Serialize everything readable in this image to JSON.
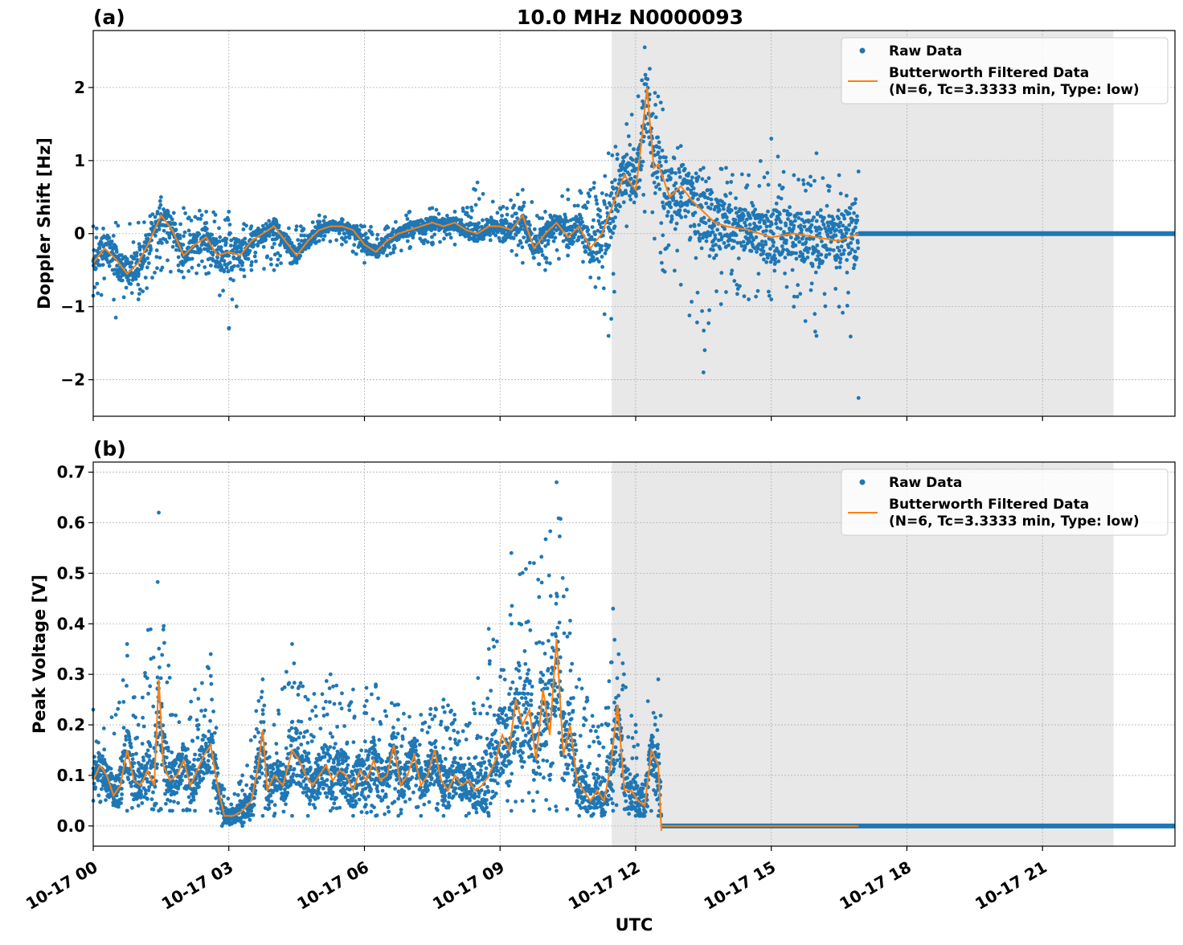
{
  "title": "10.0 MHz N0000093",
  "xlabel": "UTC",
  "x_ticks": [
    "10-17 00",
    "10-17 03",
    "10-17 06",
    "10-17 09",
    "10-17 12",
    "10-17 15",
    "10-17 18",
    "10-17 21"
  ],
  "colors": {
    "raw": "#1f77b4",
    "filtered": "#ff7f0e",
    "shade": "#e8e8e8",
    "grid": "#b0b0b0"
  },
  "legend": {
    "raw_label": "Raw Data",
    "filtered_label_1": "Butterworth Filtered Data",
    "filtered_label_2": "(N=6, Tc=3.3333 min, Type: low)"
  },
  "chart_data": [
    {
      "type": "scatter",
      "panel_label": "(a)",
      "ylabel": "Doppler Shift [Hz]",
      "xlim_hours": [
        0,
        23.93
      ],
      "ylim": [
        -2.5,
        2.78
      ],
      "y_ticks": [
        -2,
        -1,
        0,
        1,
        2
      ],
      "y_tick_labels": [
        "−2",
        "−1",
        "0",
        "1",
        "2"
      ],
      "shaded_region_hours": [
        11.47,
        22.57
      ],
      "data_end_hours": 16.93,
      "flat_value_after_end": 0,
      "series": [
        {
          "name": "Raw Data",
          "kind": "scatter",
          "approx_envelope": [
            {
              "x": 0.0,
              "lo": -0.85,
              "hi": 0.1
            },
            {
              "x": 0.5,
              "lo": -1.15,
              "hi": 0.15
            },
            {
              "x": 1.0,
              "lo": -0.9,
              "hi": 0.15
            },
            {
              "x": 1.5,
              "lo": -0.5,
              "hi": 0.5
            },
            {
              "x": 2.0,
              "lo": -0.6,
              "hi": 0.35
            },
            {
              "x": 2.5,
              "lo": -0.55,
              "hi": 0.3
            },
            {
              "x": 3.0,
              "lo": -1.3,
              "hi": 0.3
            },
            {
              "x": 3.5,
              "lo": -0.5,
              "hi": 0.1
            },
            {
              "x": 4.0,
              "lo": -0.5,
              "hi": 0.2
            },
            {
              "x": 4.5,
              "lo": -0.4,
              "hi": 0.1
            },
            {
              "x": 5.0,
              "lo": -0.1,
              "hi": 0.25
            },
            {
              "x": 5.5,
              "lo": -0.15,
              "hi": 0.2
            },
            {
              "x": 6.0,
              "lo": -0.4,
              "hi": 0.1
            },
            {
              "x": 6.5,
              "lo": -0.3,
              "hi": 0.1
            },
            {
              "x": 7.0,
              "lo": -0.2,
              "hi": 0.3
            },
            {
              "x": 7.5,
              "lo": -0.15,
              "hi": 0.35
            },
            {
              "x": 8.0,
              "lo": -0.15,
              "hi": 0.3
            },
            {
              "x": 8.5,
              "lo": -0.1,
              "hi": 0.7
            },
            {
              "x": 9.0,
              "lo": -0.1,
              "hi": 0.35
            },
            {
              "x": 9.5,
              "lo": -0.4,
              "hi": 0.6
            },
            {
              "x": 10.0,
              "lo": -0.5,
              "hi": 0.3
            },
            {
              "x": 10.5,
              "lo": -0.3,
              "hi": 0.6
            },
            {
              "x": 11.0,
              "lo": -0.6,
              "hi": 0.6
            },
            {
              "x": 11.4,
              "lo": -1.4,
              "hi": 1.1
            },
            {
              "x": 11.8,
              "lo": 0.1,
              "hi": 1.5
            },
            {
              "x": 12.2,
              "lo": 0.3,
              "hi": 2.55
            },
            {
              "x": 12.6,
              "lo": -0.5,
              "hi": 1.7
            },
            {
              "x": 13.0,
              "lo": -0.7,
              "hi": 1.2
            },
            {
              "x": 13.5,
              "lo": -1.9,
              "hi": 0.9
            },
            {
              "x": 14.0,
              "lo": -0.8,
              "hi": 0.9
            },
            {
              "x": 14.5,
              "lo": -0.9,
              "hi": 0.8
            },
            {
              "x": 15.0,
              "lo": -0.9,
              "hi": 1.3
            },
            {
              "x": 15.5,
              "lo": -1.0,
              "hi": 0.8
            },
            {
              "x": 16.0,
              "lo": -1.4,
              "hi": 1.1
            },
            {
              "x": 16.5,
              "lo": -1.0,
              "hi": 0.8
            },
            {
              "x": 16.93,
              "lo": -2.25,
              "hi": 0.85
            }
          ]
        },
        {
          "name": "Butterworth Filtered Data",
          "kind": "line",
          "x": [
            0.0,
            0.25,
            0.5,
            0.75,
            1.0,
            1.25,
            1.5,
            1.75,
            2.0,
            2.25,
            2.5,
            2.75,
            3.0,
            3.25,
            3.5,
            3.75,
            4.0,
            4.25,
            4.5,
            4.75,
            5.0,
            5.25,
            5.5,
            5.75,
            6.0,
            6.25,
            6.5,
            6.75,
            7.0,
            7.25,
            7.5,
            7.75,
            8.0,
            8.25,
            8.5,
            8.75,
            9.0,
            9.25,
            9.5,
            9.75,
            10.0,
            10.25,
            10.5,
            10.75,
            11.0,
            11.25,
            11.5,
            11.75,
            12.0,
            12.1,
            12.25,
            12.4,
            12.5,
            12.75,
            13.0,
            13.25,
            13.5,
            13.75,
            14.0,
            14.5,
            15.0,
            15.5,
            16.0,
            16.5,
            16.93
          ],
          "y": [
            -0.4,
            -0.2,
            -0.35,
            -0.55,
            -0.4,
            -0.1,
            0.25,
            0.05,
            -0.3,
            -0.15,
            -0.05,
            -0.3,
            -0.25,
            -0.3,
            -0.1,
            0.0,
            0.1,
            -0.1,
            -0.3,
            -0.1,
            0.05,
            0.1,
            0.1,
            0.05,
            -0.15,
            -0.25,
            -0.1,
            0.0,
            0.05,
            0.1,
            0.15,
            0.1,
            0.15,
            0.05,
            0.0,
            0.1,
            0.1,
            0.05,
            0.25,
            -0.2,
            0.0,
            0.15,
            -0.05,
            0.1,
            -0.2,
            0.0,
            0.4,
            0.8,
            0.6,
            1.1,
            2.0,
            0.9,
            0.95,
            0.5,
            0.65,
            0.45,
            0.3,
            0.15,
            0.1,
            0.05,
            -0.05,
            0.0,
            -0.05,
            -0.1,
            0.0
          ]
        }
      ]
    },
    {
      "type": "scatter",
      "panel_label": "(b)",
      "ylabel": "Peak Voltage [V]",
      "xlim_hours": [
        0,
        23.93
      ],
      "ylim": [
        -0.04,
        0.72
      ],
      "y_ticks": [
        0.0,
        0.1,
        0.2,
        0.3,
        0.4,
        0.5,
        0.6,
        0.7
      ],
      "y_tick_labels": [
        "0.0",
        "0.1",
        "0.2",
        "0.3",
        "0.4",
        "0.5",
        "0.6",
        "0.7"
      ],
      "shaded_region_hours": [
        11.47,
        22.57
      ],
      "data_end_hours": 12.57,
      "flat_value_after_end": 0.0,
      "series": [
        {
          "name": "Raw Data",
          "kind": "scatter",
          "approx_envelope": [
            {
              "x": 0.0,
              "lo": 0.05,
              "hi": 0.23
            },
            {
              "x": 0.5,
              "lo": 0.04,
              "hi": 0.22
            },
            {
              "x": 0.75,
              "lo": 0.03,
              "hi": 0.36
            },
            {
              "x": 1.0,
              "lo": 0.04,
              "hi": 0.2
            },
            {
              "x": 1.45,
              "lo": 0.03,
              "hi": 0.62
            },
            {
              "x": 1.75,
              "lo": 0.03,
              "hi": 0.22
            },
            {
              "x": 2.25,
              "lo": 0.03,
              "hi": 0.27
            },
            {
              "x": 2.6,
              "lo": 0.03,
              "hi": 0.34
            },
            {
              "x": 2.85,
              "lo": 0.0,
              "hi": 0.08
            },
            {
              "x": 3.3,
              "lo": 0.0,
              "hi": 0.1
            },
            {
              "x": 3.75,
              "lo": 0.02,
              "hi": 0.29
            },
            {
              "x": 4.0,
              "lo": 0.02,
              "hi": 0.2
            },
            {
              "x": 4.4,
              "lo": 0.02,
              "hi": 0.36
            },
            {
              "x": 4.75,
              "lo": 0.02,
              "hi": 0.25
            },
            {
              "x": 5.25,
              "lo": 0.03,
              "hi": 0.3
            },
            {
              "x": 5.75,
              "lo": 0.02,
              "hi": 0.27
            },
            {
              "x": 6.25,
              "lo": 0.02,
              "hi": 0.28
            },
            {
              "x": 6.75,
              "lo": 0.02,
              "hi": 0.24
            },
            {
              "x": 7.25,
              "lo": 0.02,
              "hi": 0.22
            },
            {
              "x": 7.75,
              "lo": 0.02,
              "hi": 0.25
            },
            {
              "x": 8.25,
              "lo": 0.02,
              "hi": 0.2
            },
            {
              "x": 8.75,
              "lo": 0.02,
              "hi": 0.39
            },
            {
              "x": 9.25,
              "lo": 0.03,
              "hi": 0.54
            },
            {
              "x": 9.75,
              "lo": 0.03,
              "hi": 0.52
            },
            {
              "x": 10.25,
              "lo": 0.03,
              "hi": 0.68
            },
            {
              "x": 10.75,
              "lo": 0.02,
              "hi": 0.29
            },
            {
              "x": 11.25,
              "lo": 0.02,
              "hi": 0.2
            },
            {
              "x": 11.5,
              "lo": 0.03,
              "hi": 0.43
            },
            {
              "x": 12.0,
              "lo": 0.02,
              "hi": 0.2
            },
            {
              "x": 12.5,
              "lo": 0.02,
              "hi": 0.29
            }
          ]
        },
        {
          "name": "Butterworth Filtered Data",
          "kind": "line",
          "x": [
            0.0,
            0.15,
            0.3,
            0.45,
            0.6,
            0.75,
            0.9,
            1.05,
            1.2,
            1.35,
            1.45,
            1.55,
            1.7,
            1.85,
            2.0,
            2.15,
            2.3,
            2.45,
            2.6,
            2.75,
            2.9,
            3.1,
            3.3,
            3.5,
            3.65,
            3.75,
            3.85,
            4.0,
            4.2,
            4.4,
            4.55,
            4.7,
            4.85,
            5.0,
            5.15,
            5.3,
            5.45,
            5.6,
            5.75,
            5.9,
            6.05,
            6.2,
            6.35,
            6.5,
            6.65,
            6.8,
            6.95,
            7.1,
            7.25,
            7.4,
            7.55,
            7.7,
            7.85,
            8.0,
            8.15,
            8.3,
            8.45,
            8.6,
            8.75,
            8.9,
            9.05,
            9.2,
            9.35,
            9.5,
            9.65,
            9.8,
            9.95,
            10.1,
            10.25,
            10.4,
            10.55,
            10.7,
            10.85,
            11.0,
            11.15,
            11.3,
            11.45,
            11.6,
            11.75,
            11.9,
            12.05,
            12.2,
            12.35,
            12.5,
            12.57
          ],
          "y": [
            0.09,
            0.12,
            0.1,
            0.06,
            0.08,
            0.15,
            0.09,
            0.08,
            0.11,
            0.08,
            0.29,
            0.12,
            0.09,
            0.1,
            0.13,
            0.08,
            0.11,
            0.14,
            0.16,
            0.08,
            0.02,
            0.02,
            0.03,
            0.05,
            0.12,
            0.19,
            0.07,
            0.1,
            0.08,
            0.15,
            0.13,
            0.1,
            0.08,
            0.1,
            0.12,
            0.09,
            0.11,
            0.1,
            0.07,
            0.11,
            0.09,
            0.13,
            0.09,
            0.1,
            0.16,
            0.08,
            0.1,
            0.14,
            0.08,
            0.1,
            0.15,
            0.09,
            0.07,
            0.1,
            0.08,
            0.09,
            0.07,
            0.08,
            0.1,
            0.13,
            0.18,
            0.15,
            0.25,
            0.2,
            0.23,
            0.13,
            0.27,
            0.18,
            0.37,
            0.14,
            0.2,
            0.09,
            0.07,
            0.05,
            0.07,
            0.05,
            0.12,
            0.24,
            0.07,
            0.07,
            0.05,
            0.04,
            0.15,
            0.12,
            -0.01
          ]
        }
      ]
    }
  ]
}
